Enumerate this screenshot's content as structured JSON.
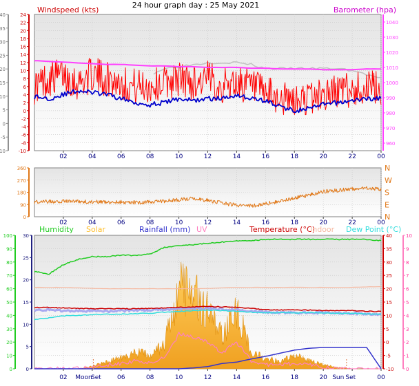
{
  "title": "24 hour graph day : 25 May 2021",
  "colors": {
    "background": "#ffffff",
    "plot_top": "#eeeeee",
    "plot_bottom": "#ffffff",
    "grid": "#c8c8c8",
    "wind": "#ff0000",
    "wind_avg": "#0000cc",
    "gust_max": "#c0c0c0",
    "baro": "#ff40ff",
    "direction": "#e07818",
    "humidity": "#22cc22",
    "solar": "#ffc030",
    "rainfall": "#3333cc",
    "uv": "#ff80c0",
    "temperature": "#cc0000",
    "indoor": "#f5b8a0",
    "dew_point": "#33dddd",
    "axis_dark": "#404040"
  },
  "x_ticks": [
    "02",
    "04",
    "06",
    "08",
    "10",
    "12",
    "14",
    "16",
    "18",
    "20",
    "22",
    "00"
  ],
  "chart_data": [
    {
      "type": "line",
      "panel": "wind_baro",
      "series_labels": {
        "left": "Windspeed (kts)",
        "right": "Barometer (hpa)"
      },
      "left_axis": {
        "ticks": [
          "-10",
          "-8",
          "-6",
          "-4",
          "-2",
          "0",
          "2",
          "4",
          "6",
          "8",
          "10",
          "12",
          "14",
          "16",
          "18",
          "20",
          "22",
          "24"
        ],
        "ylim": [
          -10,
          24
        ]
      },
      "left_outer_axis": {
        "ticks": [
          "-10",
          "-5",
          "0",
          "5",
          "10",
          "15",
          "20",
          "25",
          "30",
          "35",
          "40"
        ],
        "ylim": [
          -10,
          40
        ]
      },
      "right_axis": {
        "ticks": [
          "960",
          "970",
          "980",
          "990",
          "1000",
          "1010",
          "1020",
          "1030",
          "1040"
        ],
        "ylim": [
          955,
          1045
        ]
      },
      "x": [
        0,
        1,
        2,
        3,
        4,
        5,
        6,
        7,
        8,
        9,
        10,
        11,
        12,
        13,
        14,
        15,
        16,
        17,
        18,
        19,
        20,
        21,
        22,
        23,
        24
      ],
      "series": [
        {
          "name": "Windspeed (kts)",
          "kind": "speed",
          "values": [
            6,
            8,
            9,
            7,
            9,
            8,
            7,
            6,
            6,
            7,
            8,
            7,
            8,
            6,
            7,
            6,
            4,
            3,
            2,
            3,
            4,
            5,
            5,
            6,
            5
          ]
        },
        {
          "kind": "average",
          "values": [
            3.5,
            3,
            4,
            5,
            4.5,
            4,
            3,
            2,
            1.5,
            2,
            3,
            2.5,
            3,
            3,
            4,
            3,
            2.5,
            1,
            0,
            0.5,
            1.5,
            2,
            2.5,
            3,
            3
          ]
        },
        {
          "kind": "gust",
          "values": [
            null,
            null,
            null,
            null,
            null,
            null,
            null,
            null,
            9,
            10.5,
            11,
            11.5,
            12,
            12,
            12,
            11.5,
            10.5,
            10.5,
            10.5,
            10.5,
            10.5,
            10.5,
            10,
            9,
            8
          ]
        },
        {
          "name": "Barometer (hpa)",
          "kind": "baro",
          "values": [
            1014.5,
            1014,
            1013.5,
            1013,
            1012.5,
            1012,
            1012,
            1011.5,
            1011,
            1011,
            1010.5,
            1010.5,
            1010,
            1010,
            1010,
            1009.5,
            1009.5,
            1009,
            1009,
            1009,
            1008.5,
            1008.5,
            1008.5,
            1009,
            1009
          ]
        }
      ]
    },
    {
      "type": "line",
      "panel": "direction",
      "left_axis": {
        "ticks": [
          "0",
          "90",
          "180",
          "270",
          "360"
        ],
        "ylim": [
          0,
          360
        ]
      },
      "right_axis": {
        "ticks": [
          "N",
          "E",
          "S",
          "W",
          "N"
        ]
      },
      "x": [
        0,
        1,
        2,
        3,
        4,
        5,
        6,
        7,
        8,
        9,
        10,
        11,
        12,
        13,
        14,
        15,
        16,
        17,
        18,
        19,
        20,
        21,
        22,
        23,
        24
      ],
      "series": [
        {
          "kind": "direction",
          "values": [
            110,
            112,
            115,
            112,
            110,
            108,
            108,
            105,
            110,
            115,
            125,
            135,
            120,
            100,
            85,
            80,
            95,
            115,
            140,
            160,
            185,
            195,
            205,
            215,
            200
          ]
        }
      ]
    },
    {
      "type": "line",
      "panel": "temp_hum_rain",
      "series_labels": {
        "humidity": "Humidity",
        "solar": "Solar",
        "rainfall": "Rainfall (mm)",
        "uv": "UV",
        "temperature": "Temperature (°C)",
        "indoor": "Indoor",
        "dew_point": "Dew Point (°C)"
      },
      "axis_humidity": {
        "ticks": [
          "0",
          "10",
          "20",
          "30",
          "40",
          "50",
          "60",
          "70",
          "80",
          "90",
          "100"
        ],
        "ylim": [
          0,
          100
        ]
      },
      "axis_rain": {
        "ticks": [
          "0",
          "5",
          "10",
          "15",
          "20",
          "25",
          "30"
        ],
        "ylim": [
          0,
          30
        ]
      },
      "axis_temp": {
        "ticks": [
          "-10",
          "-5",
          "0",
          "5",
          "10",
          "15",
          "20",
          "25",
          "30",
          "35",
          "40"
        ],
        "ylim": [
          -10,
          40
        ]
      },
      "axis_uv": {
        "ticks": [
          "0",
          "1",
          "2",
          "3",
          "4",
          "5",
          "6",
          "7",
          "8",
          "9",
          "10"
        ],
        "ylim": [
          0,
          10
        ]
      },
      "annotations": [
        "Moon",
        "Set",
        "Sun",
        "Set"
      ],
      "x": [
        0,
        1,
        2,
        3,
        4,
        5,
        6,
        7,
        8,
        9,
        10,
        11,
        12,
        13,
        14,
        15,
        16,
        17,
        18,
        19,
        20,
        21,
        22,
        23,
        24
      ],
      "series": [
        {
          "name": "Humidity",
          "kind": "humidity",
          "values": [
            73,
            71,
            78,
            82,
            84,
            84,
            85,
            85,
            86,
            91,
            92,
            93,
            94,
            95,
            96,
            96,
            97,
            97,
            97,
            97,
            97,
            97,
            97,
            97,
            96
          ]
        },
        {
          "name": "Indoor",
          "kind": "indoor",
          "values": [
            20.5,
            20.5,
            20.5,
            20.3,
            20.1,
            20,
            20,
            20,
            20,
            20,
            20,
            20,
            20.1,
            20.3,
            20.5,
            20.5,
            20.5,
            20.5,
            20.5,
            20.5,
            20.5,
            20.5,
            20.5,
            20.7,
            20.8
          ]
        },
        {
          "name": "Temperature (°C)",
          "kind": "temperature",
          "values": [
            13,
            13,
            12.8,
            12.6,
            12.5,
            12.5,
            12.5,
            12.5,
            12.6,
            12.8,
            13,
            13.2,
            13.4,
            13.2,
            13,
            12.6,
            12.2,
            12,
            12,
            12,
            11.8,
            11.8,
            11.8,
            11.5,
            11.5
          ]
        },
        {
          "kind": "temperature_band",
          "values": [
            12,
            12,
            11.8,
            11.6,
            11.6,
            11.6,
            11.7,
            11.9,
            12,
            12.2,
            12.5,
            12.6,
            12.6,
            12.4,
            12,
            11.6,
            11.2,
            11,
            11,
            11,
            11,
            10.8,
            10.8,
            10.5,
            10.5
          ]
        },
        {
          "name": "Dew Point (°C)",
          "kind": "dew_point",
          "values": [
            8.5,
            9,
            9.8,
            10,
            10.3,
            10.4,
            10.5,
            10.7,
            10.8,
            11.2,
            11.5,
            11.8,
            12,
            11.8,
            11.5,
            11.2,
            11,
            11,
            11,
            11,
            11,
            10.8,
            10.8,
            10.5,
            10.5
          ]
        },
        {
          "name": "Solar",
          "kind": "solar",
          "values": [
            0,
            0,
            0,
            0,
            0.2,
            0.5,
            0.8,
            1.2,
            1,
            1.8,
            6,
            5.5,
            4.5,
            2.5,
            4.5,
            1.2,
            0.8,
            0.5,
            1,
            0.6,
            0.3,
            0.1,
            0,
            0,
            0
          ]
        },
        {
          "name": "UV",
          "kind": "uv",
          "values": [
            0,
            0,
            0,
            0,
            0.1,
            0.3,
            0.4,
            0.6,
            0.5,
            0.8,
            2.6,
            2.4,
            2,
            1.2,
            2,
            0.6,
            0.3,
            0.3,
            0.4,
            0.3,
            0.1,
            0,
            0,
            0,
            0
          ]
        },
        {
          "name": "Rainfall (mm)",
          "kind": "rainfall",
          "values": [
            0,
            0,
            0,
            0,
            0,
            0,
            0,
            0,
            0,
            0,
            0,
            0.2,
            0.5,
            1.2,
            1.5,
            2.2,
            2.8,
            3.5,
            4.2,
            4.6,
            4.8,
            4.8,
            4.8,
            4.8,
            0
          ]
        }
      ]
    }
  ]
}
